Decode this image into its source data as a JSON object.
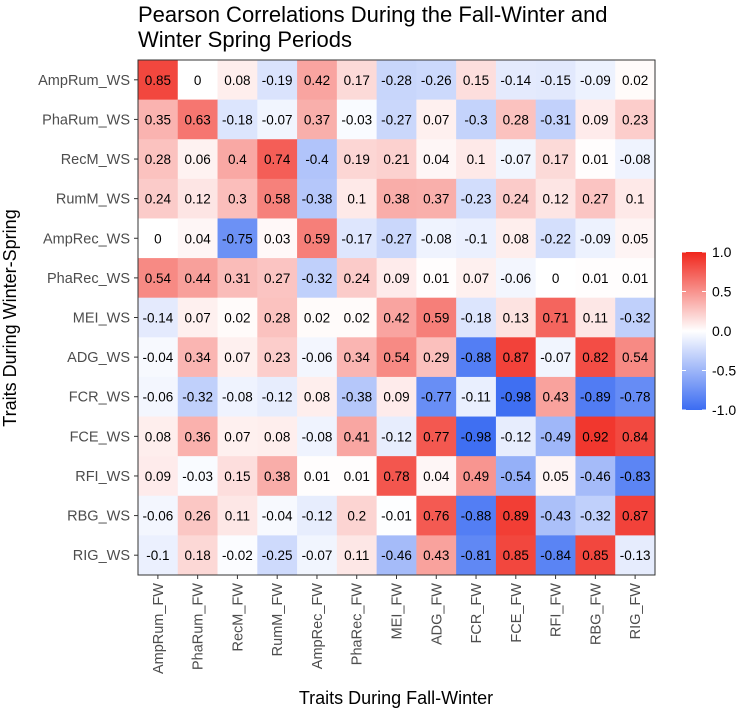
{
  "chart_data": {
    "type": "heatmap",
    "title_lines": [
      "Pearson Correlations During the Fall-Winter and",
      "Winter Spring Periods"
    ],
    "xlabel": "Traits During Fall-Winter",
    "ylabel": "Traits During Winter-Spring",
    "x": [
      "AmpRum_FW",
      "PhaRum_FW",
      "RecM_FW",
      "RumM_FW",
      "AmpRec_FW",
      "PhaRec_FW",
      "MEI_FW",
      "ADG_FW",
      "FCR_FW",
      "FCE_FW",
      "RFI_FW",
      "RBG_FW",
      "RIG_FW"
    ],
    "y": [
      "AmpRum_WS",
      "PhaRum_WS",
      "RecM_WS",
      "RumM_WS",
      "AmpRec_WS",
      "PhaRec_WS",
      "MEI_WS",
      "ADG_WS",
      "FCR_WS",
      "FCE_WS",
      "RFI_WS",
      "RBG_WS",
      "RIG_WS"
    ],
    "values": [
      [
        "0.85",
        "0",
        "0.08",
        "-0.19",
        "0.42",
        "0.17",
        "-0.28",
        "-0.26",
        "0.15",
        "-0.14",
        "-0.15",
        "-0.09",
        "0.02"
      ],
      [
        "0.35",
        "0.63",
        "-0.18",
        "-0.07",
        "0.37",
        "-0.03",
        "-0.27",
        "0.07",
        "-0.3",
        "0.28",
        "-0.31",
        "0.09",
        "0.23"
      ],
      [
        "0.28",
        "0.06",
        "0.4",
        "0.74",
        "-0.4",
        "0.19",
        "0.21",
        "0.04",
        "0.1",
        "-0.07",
        "0.17",
        "0.01",
        "-0.08"
      ],
      [
        "0.24",
        "0.12",
        "0.3",
        "0.58",
        "-0.38",
        "0.1",
        "0.38",
        "0.37",
        "-0.23",
        "0.24",
        "0.12",
        "0.27",
        "0.1"
      ],
      [
        "0",
        "0.04",
        "-0.75",
        "0.03",
        "0.59",
        "-0.17",
        "-0.27",
        "-0.08",
        "-0.1",
        "0.08",
        "-0.22",
        "-0.09",
        "0.05"
      ],
      [
        "0.54",
        "0.44",
        "0.31",
        "0.27",
        "-0.32",
        "0.24",
        "0.09",
        "0.01",
        "0.07",
        "-0.06",
        "0",
        "0.01",
        "0.01"
      ],
      [
        "-0.14",
        "0.07",
        "0.02",
        "0.28",
        "0.02",
        "0.02",
        "0.42",
        "0.59",
        "-0.18",
        "0.13",
        "0.71",
        "0.11",
        "-0.32"
      ],
      [
        "-0.04",
        "0.34",
        "0.07",
        "0.23",
        "-0.06",
        "0.34",
        "0.54",
        "0.29",
        "-0.88",
        "0.87",
        "-0.07",
        "0.82",
        "0.54"
      ],
      [
        "-0.06",
        "-0.32",
        "-0.08",
        "-0.12",
        "0.08",
        "-0.38",
        "0.09",
        "-0.77",
        "-0.11",
        "-0.98",
        "0.43",
        "-0.89",
        "-0.78"
      ],
      [
        "0.08",
        "0.36",
        "0.07",
        "0.08",
        "-0.08",
        "0.41",
        "-0.12",
        "0.77",
        "-0.98",
        "-0.12",
        "-0.49",
        "0.92",
        "0.84"
      ],
      [
        "0.09",
        "-0.03",
        "0.15",
        "0.38",
        "0.01",
        "0.01",
        "0.78",
        "0.04",
        "0.49",
        "-0.54",
        "0.05",
        "-0.46",
        "-0.83"
      ],
      [
        "-0.06",
        "0.26",
        "0.11",
        "-0.04",
        "-0.12",
        "0.2",
        "-0.01",
        "0.76",
        "-0.88",
        "0.89",
        "-0.43",
        "-0.32",
        "0.87"
      ],
      [
        "-0.1",
        "0.18",
        "-0.02",
        "-0.25",
        "-0.07",
        "0.11",
        "-0.46",
        "0.43",
        "-0.81",
        "0.85",
        "-0.84",
        "0.85",
        "-0.13"
      ]
    ],
    "color_scale": {
      "low": "#3b6cf2",
      "mid": "#ffffff",
      "high": "#f0261c",
      "min": -1,
      "max": 1
    },
    "legend": {
      "placement": "right",
      "ticks": [
        1.0,
        0.5,
        0.0,
        -0.5,
        -1.0
      ],
      "tick_labels": [
        "1.0",
        "0.5",
        "0.0",
        "-0.5",
        "-1.0"
      ]
    }
  }
}
